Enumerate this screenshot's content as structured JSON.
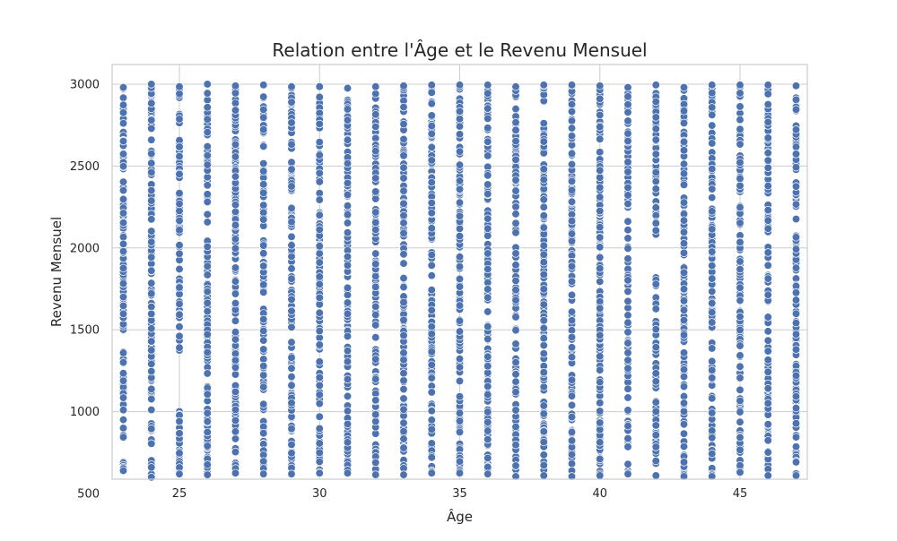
{
  "chart_data": {
    "type": "scatter",
    "title": "Relation entre l'Âge et le Revenu Mensuel",
    "xlabel": "Âge",
    "ylabel": "Revenu Mensuel",
    "xlim": [
      22.6,
      47.4
    ],
    "ylim": [
      588,
      3120
    ],
    "x_ticks": [
      25,
      30,
      35,
      40,
      45
    ],
    "y_ticks": [
      500,
      1000,
      1500,
      2000,
      2500,
      3000
    ],
    "grid": true,
    "legend": "none",
    "marker_color": "#4c72b0",
    "marker_edge_color": "#ffffff",
    "series": [
      {
        "x_values": [
          23,
          24,
          25,
          26,
          27,
          28,
          29,
          30,
          31,
          32,
          33,
          34,
          35,
          36,
          37,
          38,
          39,
          40,
          41,
          42,
          43,
          44,
          45,
          46,
          47
        ],
        "y_ranges": [
          [
            640,
            2980
          ],
          [
            600,
            3000
          ],
          [
            620,
            2985
          ],
          [
            615,
            3000
          ],
          [
            625,
            2990
          ],
          [
            620,
            2995
          ],
          [
            620,
            2985
          ],
          [
            625,
            2985
          ],
          [
            625,
            2975
          ],
          [
            615,
            2985
          ],
          [
            615,
            2990
          ],
          [
            625,
            2995
          ],
          [
            625,
            2995
          ],
          [
            620,
            2995
          ],
          [
            605,
            2985
          ],
          [
            610,
            2995
          ],
          [
            605,
            2995
          ],
          [
            610,
            2990
          ],
          [
            620,
            2980
          ],
          [
            610,
            2995
          ],
          [
            605,
            2980
          ],
          [
            605,
            2995
          ],
          [
            630,
            2995
          ],
          [
            610,
            2995
          ],
          [
            610,
            2990
          ]
        ],
        "gaps": [
          {
            "x": 23,
            "from": 1370,
            "to": 1470
          },
          {
            "x": 25,
            "from": 1040,
            "to": 1310
          },
          {
            "x": 42,
            "from": 1850,
            "to": 2080
          }
        ]
      }
    ]
  }
}
